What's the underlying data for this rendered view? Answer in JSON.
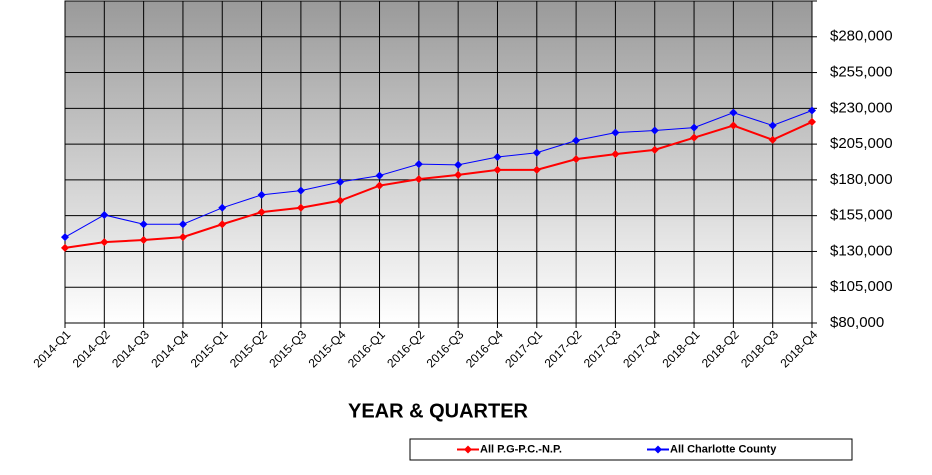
{
  "chart_data": {
    "type": "line",
    "x_label": "YEAR & QUARTER",
    "categories": [
      "2014-Q1",
      "2014-Q2",
      "2014-Q3",
      "2014-Q4",
      "2015-Q1",
      "2015-Q2",
      "2015-Q3",
      "2015-Q4",
      "2016-Q1",
      "2016-Q2",
      "2016-Q3",
      "2016-Q4",
      "2017-Q1",
      "2017-Q2",
      "2017-Q3",
      "2017-Q4",
      "2018-Q1",
      "2018-Q2",
      "2018-Q3",
      "2018-Q4"
    ],
    "series": [
      {
        "name": "All P.G-P.C.-N.P.",
        "color": "#ff0000",
        "values": [
          132500,
          136500,
          138000,
          140000,
          149000,
          157500,
          160500,
          165500,
          176000,
          180500,
          183500,
          187000,
          187000,
          194500,
          198000,
          201000,
          209500,
          218000,
          208000,
          220500
        ]
      },
      {
        "name": "All Charlotte County",
        "color": "#0000ff",
        "values": [
          140000,
          155500,
          149000,
          149000,
          160500,
          169500,
          172500,
          178500,
          183000,
          191000,
          190500,
          196000,
          199000,
          207500,
          213000,
          214500,
          216500,
          227000,
          218000,
          228500
        ]
      }
    ],
    "ylim": [
      80000,
      305000
    ],
    "yticks": [
      {
        "value": 80000,
        "label": "$80,000"
      },
      {
        "value": 105000,
        "label": "$105,000"
      },
      {
        "value": 130000,
        "label": "$130,000"
      },
      {
        "value": 155000,
        "label": "$155,000"
      },
      {
        "value": 180000,
        "label": "$180,000"
      },
      {
        "value": 205000,
        "label": "$205,000"
      },
      {
        "value": 230000,
        "label": "$230,000"
      },
      {
        "value": 255000,
        "label": "$255,000"
      },
      {
        "value": 280000,
        "label": "$280,000"
      },
      {
        "value": 305000,
        "label": ""
      }
    ],
    "grid": true,
    "legend": "bottom-right"
  }
}
